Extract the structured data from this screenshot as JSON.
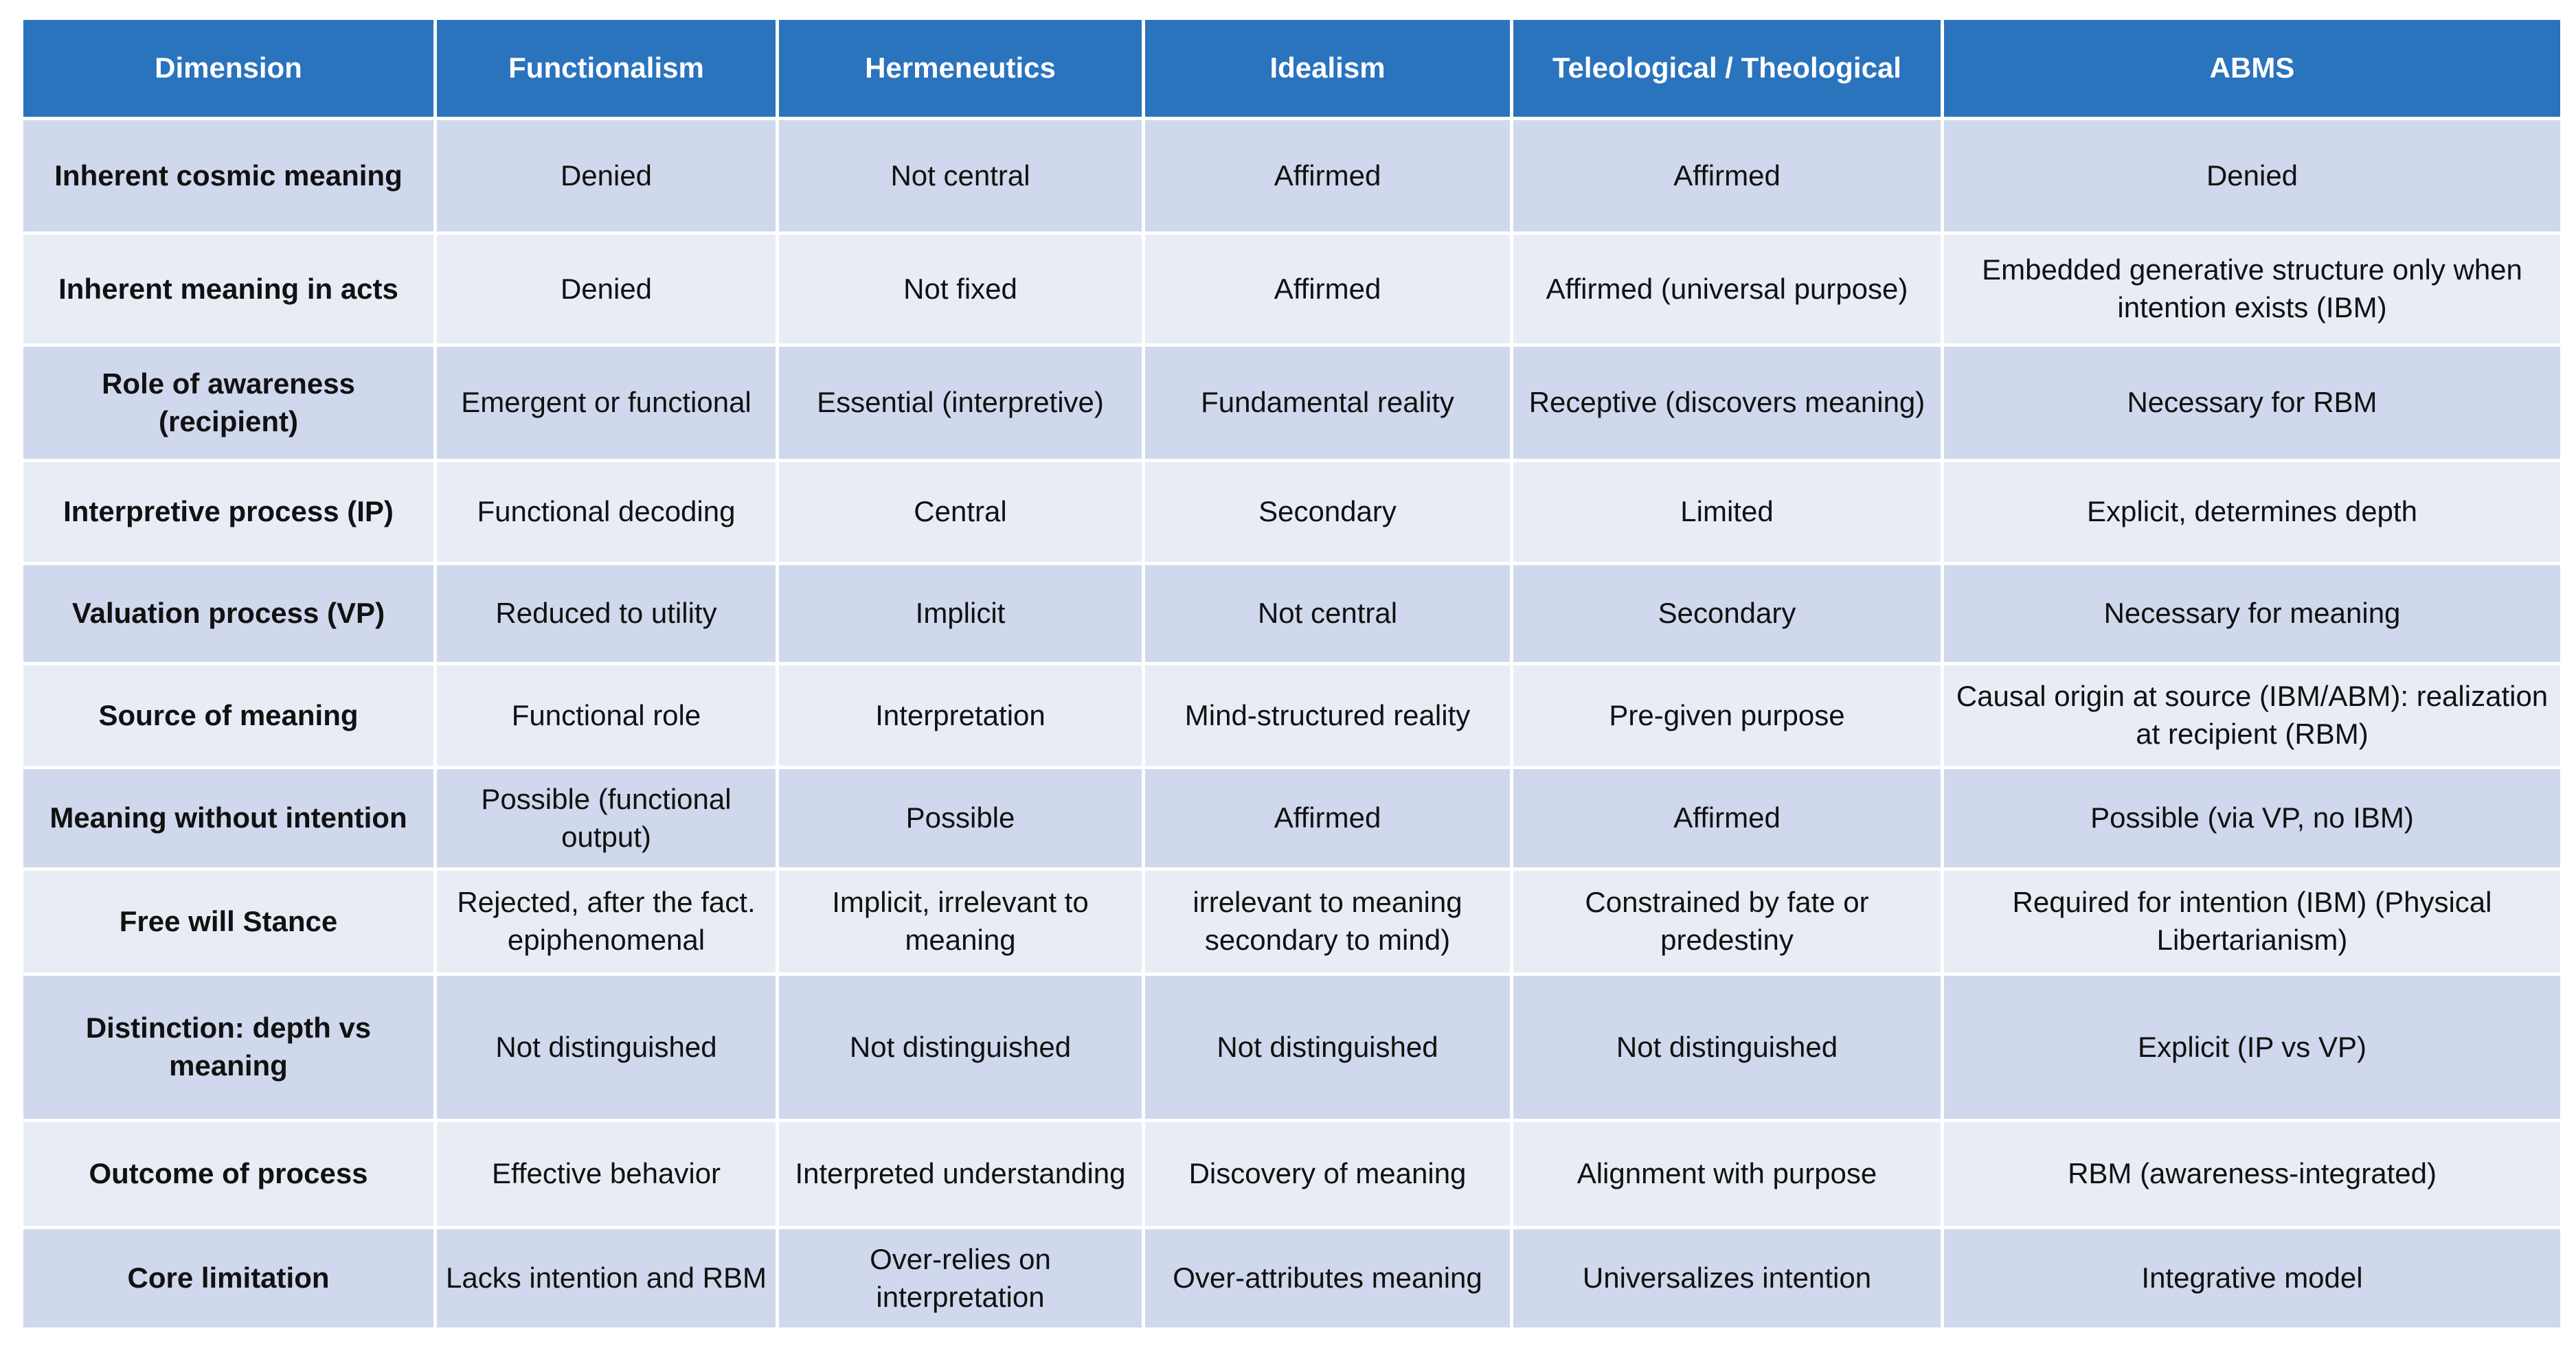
{
  "table": {
    "header": [
      "Dimension",
      "Functionalism",
      "Hermeneutics",
      "Idealism",
      "Teleological / Theological",
      "ABMS"
    ],
    "rows": [
      [
        "Inherent cosmic meaning",
        "Denied",
        "Not central",
        "Affirmed",
        "Affirmed",
        "Denied"
      ],
      [
        "Inherent meaning in acts",
        "Denied",
        "Not fixed",
        "Affirmed",
        "Affirmed (universal purpose)",
        "Embedded generative structure only when intention exists (IBM)"
      ],
      [
        "Role of awareness (recipient)",
        "Emergent or functional",
        "Essential (interpretive)",
        "Fundamental reality",
        "Receptive (discovers meaning)",
        "Necessary for RBM"
      ],
      [
        "Interpretive process (IP)",
        "Functional decoding",
        "Central",
        "Secondary",
        "Limited",
        "Explicit, determines depth"
      ],
      [
        "Valuation process (VP)",
        "Reduced to utility",
        "Implicit",
        "Not central",
        "Secondary",
        "Necessary for meaning"
      ],
      [
        "Source of meaning",
        "Functional role",
        "Interpretation",
        "Mind-structured reality",
        "Pre-given purpose",
        "Causal origin at source (IBM/ABM): realization at recipient (RBM)"
      ],
      [
        "Meaning without intention",
        "Possible (functional output)",
        "Possible",
        "Affirmed",
        "Affirmed",
        "Possible (via VP, no IBM)"
      ],
      [
        "Free will Stance",
        "Rejected, after the fact. epiphenomenal",
        "Implicit, irrelevant to meaning",
        "irrelevant to meaning secondary to mind)",
        "Constrained by fate or predestiny",
        "Required for intention (IBM) (Physical Libertarianism)"
      ],
      [
        "Distinction: depth vs meaning",
        "Not distinguished",
        "Not distinguished",
        "Not distinguished",
        "Not distinguished",
        "Explicit (IP vs VP)"
      ],
      [
        "Outcome of process",
        "Effective behavior",
        "Interpreted understanding",
        "Discovery of meaning",
        "Alignment with purpose",
        "RBM (awareness-integrated)"
      ],
      [
        "Core limitation",
        "Lacks intention and RBM",
        "Over-relies on interpretation",
        "Over-attributes meaning",
        "Universalizes intention",
        "Integrative model"
      ]
    ]
  }
}
